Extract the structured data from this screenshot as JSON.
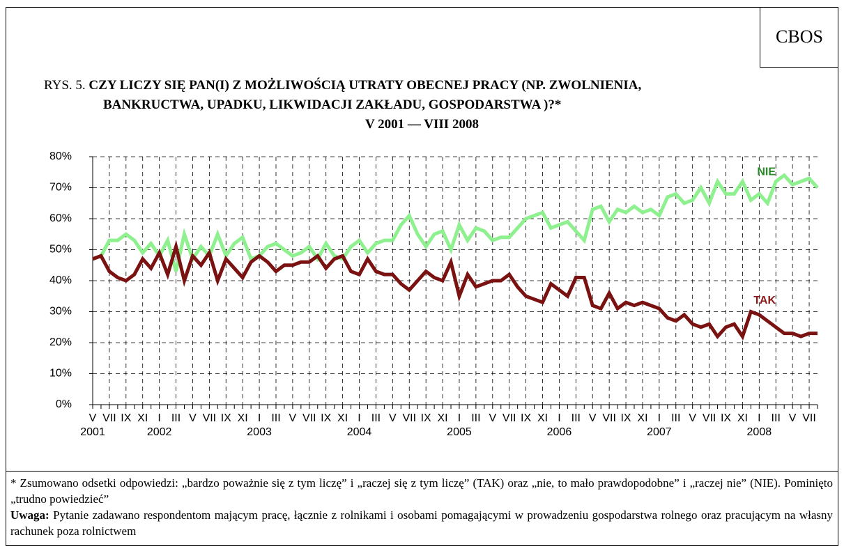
{
  "header": {
    "source": "CBOS",
    "figure_label": "RYS. 5.",
    "title_lines": [
      "CZY LICZY SIĘ PAN(I) Z MOŻLIWOŚCIĄ UTRATY OBECNEJ PRACY (NP. ZWOLNIENIA,",
      "BANKRUCTWA, UPADKU, LIKWIDACJI ZAKŁADU, GOSPODARSTWA )?*"
    ],
    "subtitle": "V 2001 — VIII 2008"
  },
  "chart_data": {
    "type": "line",
    "categories": [
      "V",
      null,
      "VII",
      null,
      "IX",
      null,
      "XI",
      null,
      "I",
      null,
      "III",
      null,
      "V",
      null,
      "VII",
      null,
      "IX",
      null,
      "XI",
      null,
      "I",
      null,
      "III",
      null,
      "V",
      null,
      "VII",
      null,
      "IX",
      null,
      "XI",
      null,
      "I",
      null,
      "III",
      null,
      "V",
      null,
      "VII",
      null,
      "IX",
      null,
      "XI",
      null,
      "I",
      null,
      "III",
      null,
      "V",
      null,
      "VII",
      null,
      "IX",
      null,
      "XI",
      null,
      "I",
      null,
      "III",
      null,
      "V",
      null,
      "VII",
      null,
      "IX",
      null,
      "XI",
      null,
      "I",
      null,
      "III",
      null,
      "V",
      null,
      "VII",
      null,
      "IX",
      null,
      "XI",
      null,
      "I",
      null,
      "III",
      null,
      "V",
      null,
      "VII",
      null
    ],
    "years": [
      "2001",
      "2002",
      "2003",
      "2004",
      "2005",
      "2006",
      "2007",
      "2008"
    ],
    "series": [
      {
        "name": "NIE",
        "color": "#8ef08e",
        "label_color": "#2a8a2a",
        "values": [
          47,
          48,
          53,
          53,
          55,
          53,
          49,
          52,
          48,
          53,
          43,
          55,
          47,
          51,
          48,
          55,
          48,
          52,
          54,
          47,
          48,
          51,
          52,
          50,
          48,
          49,
          51,
          47,
          52,
          48,
          47,
          51,
          53,
          49,
          52,
          53,
          53,
          58,
          61,
          55,
          51,
          55,
          56,
          50,
          58,
          53,
          57,
          56,
          53,
          54,
          54,
          57,
          60,
          61,
          62,
          57,
          58,
          59,
          56,
          53,
          63,
          64,
          59,
          63,
          62,
          64,
          62,
          63,
          61,
          67,
          68,
          65,
          66,
          70,
          65,
          72,
          68,
          68,
          72,
          66,
          68,
          65,
          72,
          74,
          71,
          72,
          73,
          70
        ]
      },
      {
        "name": "TAK",
        "color": "#7a1212",
        "label_color": "#8b1a1a",
        "values": [
          47,
          48,
          43,
          41,
          40,
          42,
          47,
          44,
          49,
          42,
          51,
          40,
          48,
          45,
          49,
          40,
          47,
          44,
          41,
          46,
          48,
          46,
          43,
          45,
          45,
          46,
          46,
          48,
          44,
          47,
          48,
          43,
          42,
          47,
          43,
          42,
          42,
          39,
          37,
          40,
          43,
          41,
          40,
          46,
          35,
          42,
          38,
          39,
          40,
          40,
          42,
          38,
          35,
          34,
          33,
          39,
          37,
          35,
          41,
          41,
          32,
          31,
          36,
          31,
          33,
          32,
          33,
          32,
          31,
          28,
          27,
          29,
          26,
          25,
          26,
          22,
          25,
          26,
          22,
          30,
          29,
          27,
          25,
          23,
          23,
          22,
          23,
          23
        ]
      }
    ],
    "ylim": [
      0,
      80
    ],
    "yticks": [
      {
        "value": 0,
        "label": "0%"
      },
      {
        "value": 10,
        "label": "10%"
      },
      {
        "value": 20,
        "label": "20%"
      },
      {
        "value": 30,
        "label": "30%"
      },
      {
        "value": 40,
        "label": "40%"
      },
      {
        "value": 50,
        "label": "50%"
      },
      {
        "value": 60,
        "label": "60%"
      },
      {
        "value": 70,
        "label": "70%"
      },
      {
        "value": 80,
        "label": "80%"
      }
    ],
    "grid": true
  },
  "footnote": {
    "text": "* Zsumowano odsetki odpowiedzi: „bardzo poważnie się z tym liczę” i „raczej się z tym liczę” (TAK) oraz „nie, to mało prawdopodobne” i „raczej nie” (NIE). Pominięto „trudno powiedzieć”",
    "note_label": "Uwaga:",
    "note_text": " Pytanie zadawano respondentom mającym pracę, łącznie z rolnikami i osobami pomagającymi w prowadzeniu gospodarstwa rolnego oraz pracującym na własny rachunek poza rolnictwem"
  }
}
